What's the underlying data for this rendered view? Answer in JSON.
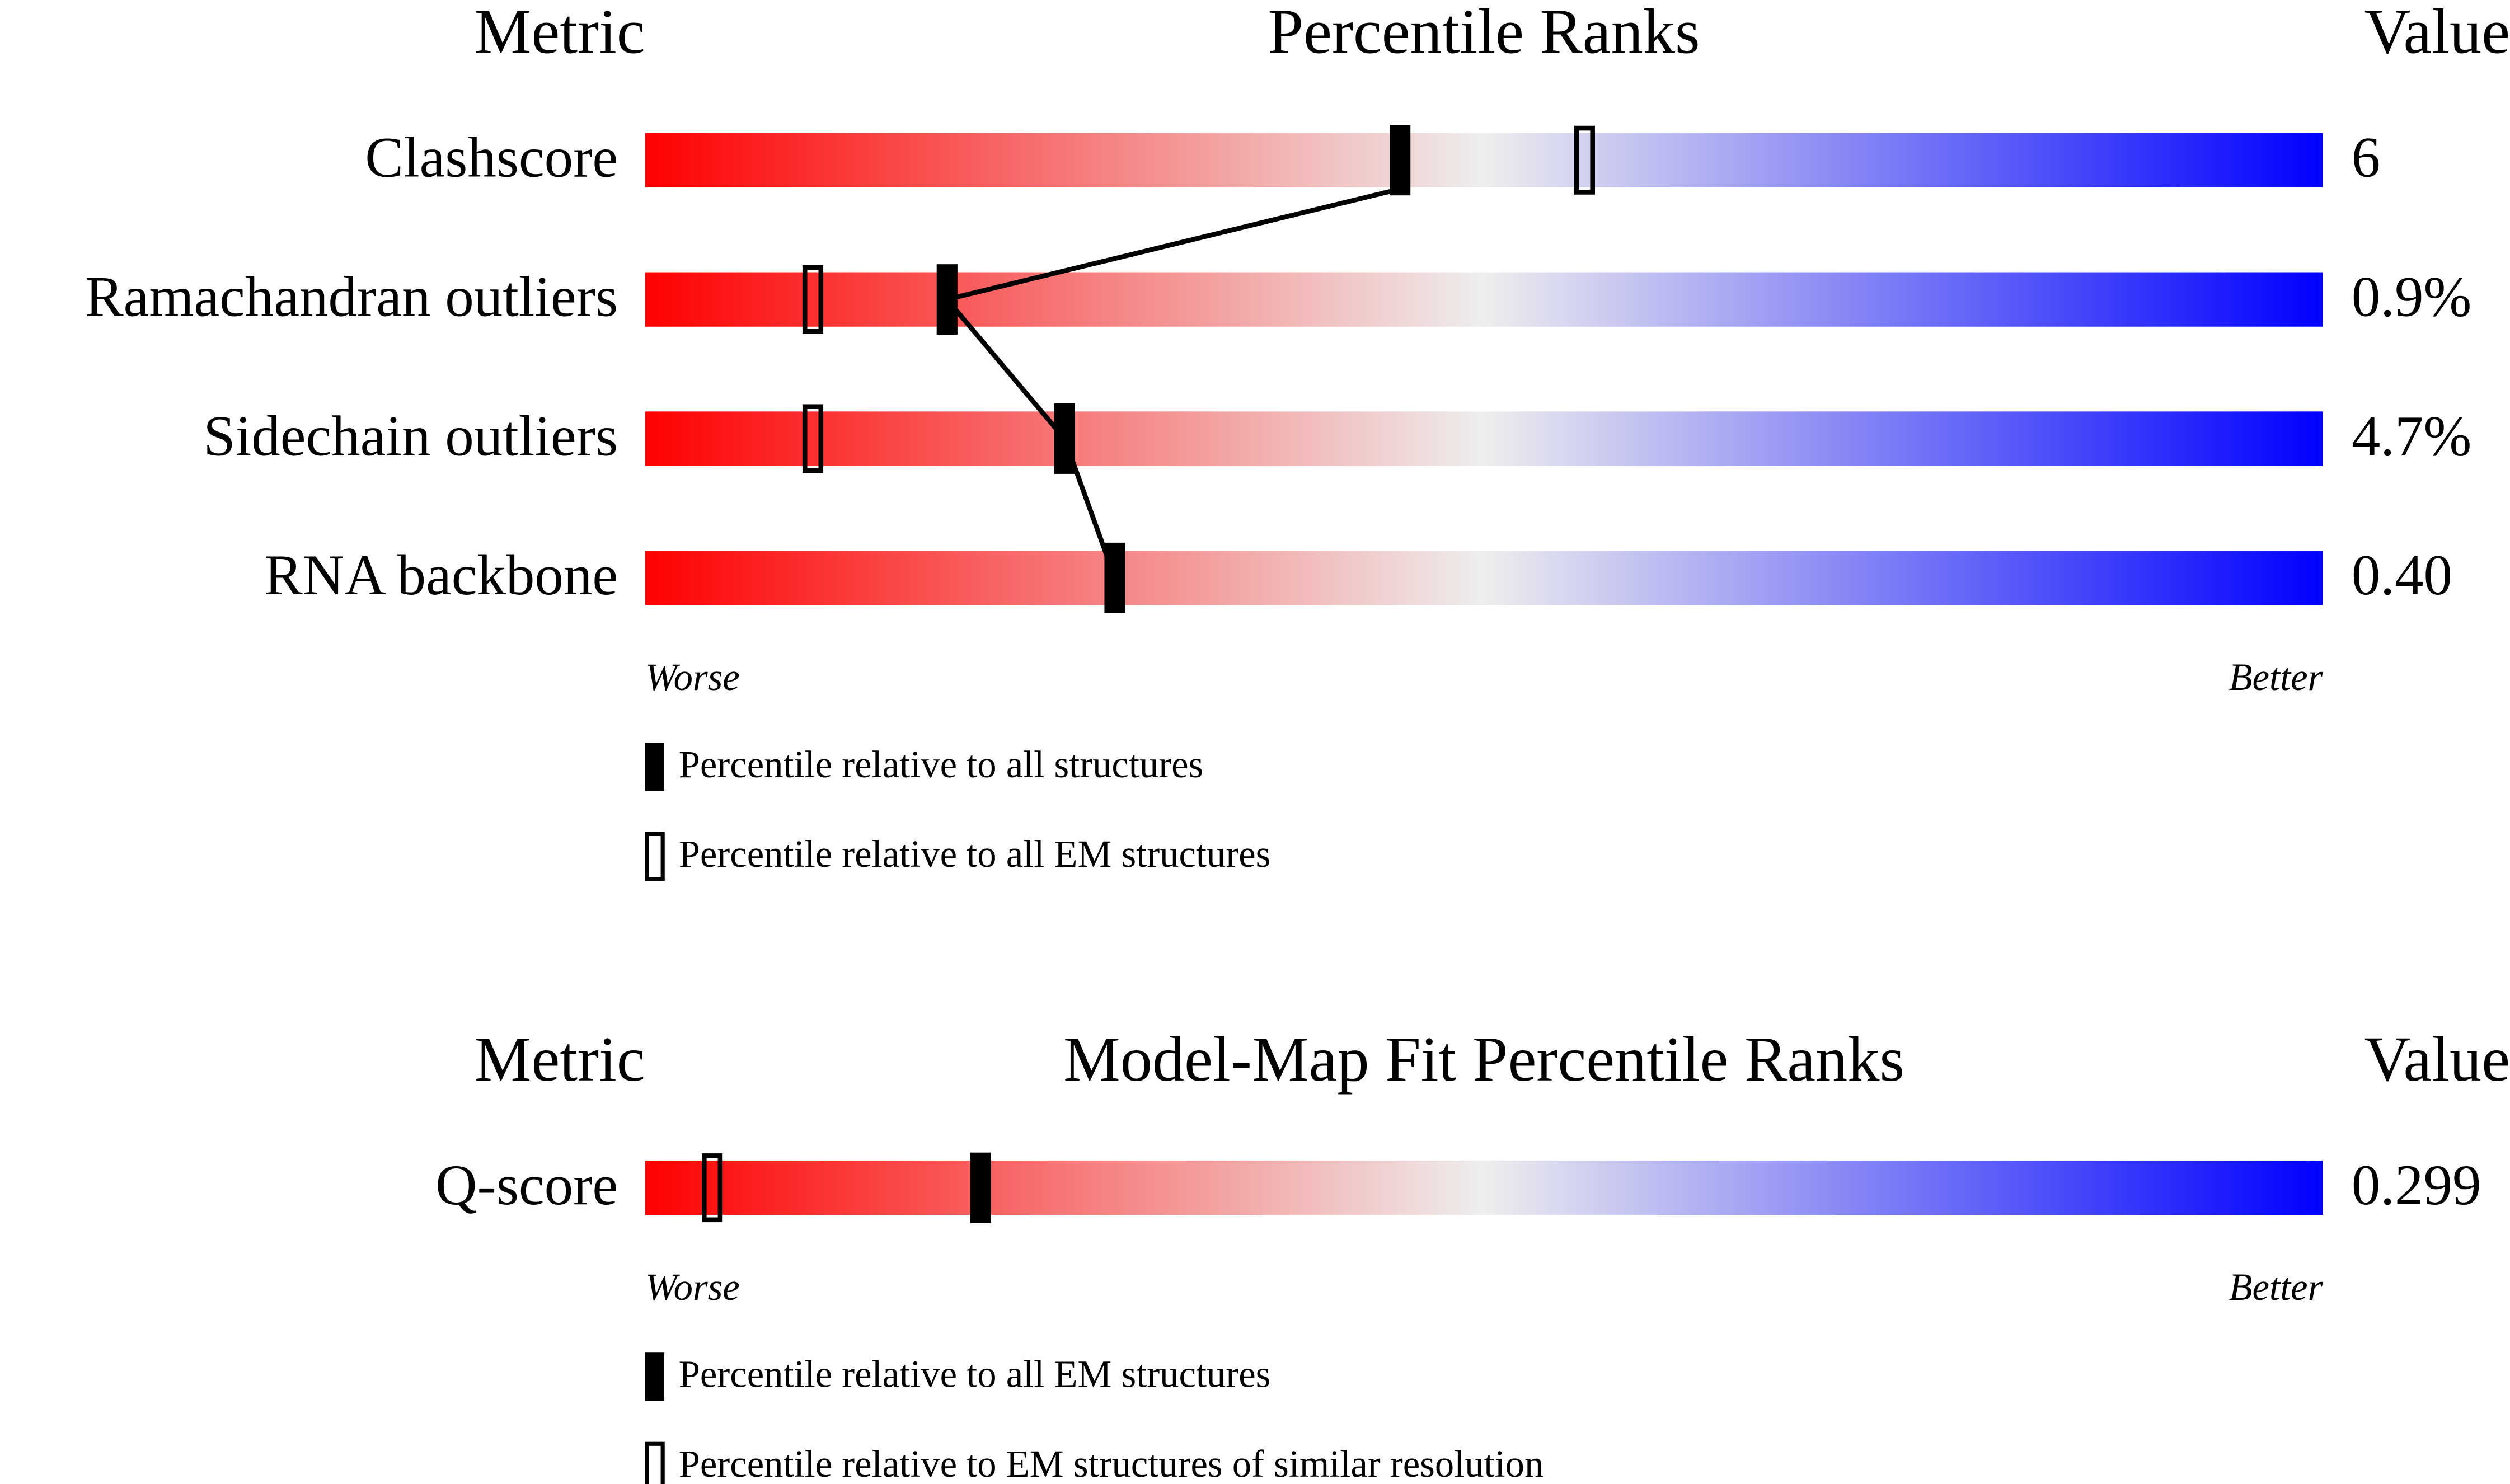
{
  "chart_data": [
    {
      "type": "slider",
      "header_left": "Metric",
      "title": "Percentile Ranks",
      "header_right": "Value",
      "categories": [
        "Clashscore",
        "Ramachandran outliers",
        "Sidechain outliers",
        "RNA backbone"
      ],
      "metric_values": [
        "6",
        "0.9%",
        "4.7%",
        "0.40"
      ],
      "series": [
        {
          "name": "Percentile relative to all structures",
          "style": "filled",
          "values": [
            45,
            18,
            25,
            28
          ]
        },
        {
          "name": "Percentile relative to all EM structures",
          "style": "open",
          "values": [
            56,
            10,
            10,
            null
          ]
        }
      ],
      "xlim": [
        0,
        100
      ],
      "worse_label": "Worse",
      "better_label": "Better",
      "gradient": [
        "#ff0000",
        "#eeeeee",
        "#0000ff"
      ]
    },
    {
      "type": "slider",
      "header_left": "Metric",
      "title": "Model-Map Fit Percentile Ranks",
      "header_right": "Value",
      "categories": [
        "Q-score"
      ],
      "metric_values": [
        "0.299"
      ],
      "series": [
        {
          "name": "Percentile relative to all EM structures",
          "style": "filled",
          "values": [
            20
          ]
        },
        {
          "name": "Percentile relative to EM structures of similar resolution",
          "style": "open",
          "values": [
            4
          ]
        }
      ],
      "xlim": [
        0,
        100
      ],
      "worse_label": "Worse",
      "better_label": "Better",
      "gradient": [
        "#ff0000",
        "#eeeeee",
        "#0000ff"
      ]
    }
  ]
}
